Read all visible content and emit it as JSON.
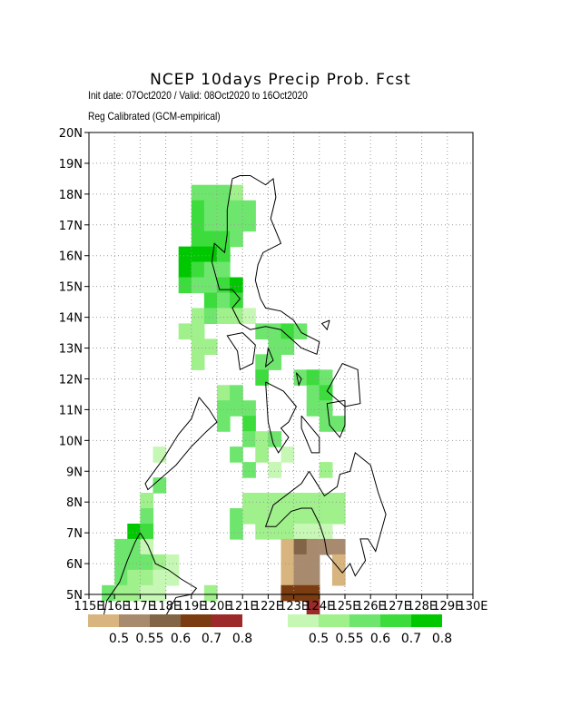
{
  "header": {
    "title": "NCEP 10days Precip Prob. Fcst",
    "init_line": "Init date: 07Oct2020 / Valid: 08Oct2020 to 16Oct2020",
    "calib_line": "Reg Calibrated (GCM-empirical)"
  },
  "axes": {
    "lat_labels": [
      "5N",
      "6N",
      "7N",
      "8N",
      "9N",
      "10N",
      "11N",
      "12N",
      "13N",
      "14N",
      "15N",
      "16N",
      "17N",
      "18N",
      "19N",
      "20N"
    ],
    "lon_labels": [
      "115E",
      "116E",
      "117E",
      "118E",
      "119E",
      "120E",
      "121E",
      "122E",
      "123E",
      "124E",
      "125E",
      "126E",
      "127E",
      "128E",
      "129E",
      "130E"
    ],
    "lat_range": [
      5,
      20
    ],
    "lon_range": [
      115,
      130
    ],
    "grid": true
  },
  "legend": {
    "dry": {
      "labels": [
        "0.5",
        "0.55",
        "0.6",
        "0.7",
        "0.8"
      ],
      "colors": [
        "#d8b57e",
        "#a88a6e",
        "#826446",
        "#7a3c10",
        "#9c2a2a"
      ]
    },
    "wet": {
      "labels": [
        "0.5",
        "0.55",
        "0.6",
        "0.7",
        "0.8"
      ],
      "colors": [
        "#c6f7b4",
        "#a0f08c",
        "#6ee66e",
        "#3cdc3c",
        "#00c800"
      ]
    }
  },
  "cell_colors": {
    "w1": "#c6f7b4",
    "w2": "#a0f08c",
    "w3": "#6ee66e",
    "w4": "#3cdc3c",
    "w5": "#00c800",
    "d1": "#d8b57e",
    "d2": "#a88a6e",
    "d3": "#826446",
    "d4": "#7a3c10",
    "d5": "#9c2a2a"
  },
  "cells": [
    {
      "lon": 119.0,
      "lat": 17.8,
      "c": "w3"
    },
    {
      "lon": 119.5,
      "lat": 17.8,
      "c": "w3"
    },
    {
      "lon": 120.0,
      "lat": 17.8,
      "c": "w3"
    },
    {
      "lon": 120.5,
      "lat": 17.8,
      "c": "w2"
    },
    {
      "lon": 119.0,
      "lat": 17.3,
      "c": "w4"
    },
    {
      "lon": 119.5,
      "lat": 17.3,
      "c": "w3"
    },
    {
      "lon": 120.0,
      "lat": 17.3,
      "c": "w3"
    },
    {
      "lon": 120.5,
      "lat": 17.3,
      "c": "w3"
    },
    {
      "lon": 121.0,
      "lat": 17.3,
      "c": "w3"
    },
    {
      "lon": 119.0,
      "lat": 16.8,
      "c": "w4"
    },
    {
      "lon": 119.5,
      "lat": 16.8,
      "c": "w3"
    },
    {
      "lon": 120.0,
      "lat": 16.8,
      "c": "w3"
    },
    {
      "lon": 120.5,
      "lat": 16.8,
      "c": "w3"
    },
    {
      "lon": 121.0,
      "lat": 16.8,
      "c": "w3"
    },
    {
      "lon": 119.0,
      "lat": 16.3,
      "c": "w4"
    },
    {
      "lon": 119.5,
      "lat": 16.3,
      "c": "w4"
    },
    {
      "lon": 120.0,
      "lat": 16.3,
      "c": "w4"
    },
    {
      "lon": 120.5,
      "lat": 16.3,
      "c": "w3"
    },
    {
      "lon": 118.5,
      "lat": 15.8,
      "c": "w5"
    },
    {
      "lon": 119.0,
      "lat": 15.8,
      "c": "w5"
    },
    {
      "lon": 119.5,
      "lat": 15.8,
      "c": "w5"
    },
    {
      "lon": 120.0,
      "lat": 15.8,
      "c": "w4"
    },
    {
      "lon": 118.5,
      "lat": 15.3,
      "c": "w5"
    },
    {
      "lon": 119.0,
      "lat": 15.3,
      "c": "w4"
    },
    {
      "lon": 119.5,
      "lat": 15.3,
      "c": "w3"
    },
    {
      "lon": 120.0,
      "lat": 15.3,
      "c": "w3"
    },
    {
      "lon": 118.5,
      "lat": 14.8,
      "c": "w4"
    },
    {
      "lon": 119.0,
      "lat": 14.8,
      "c": "w3"
    },
    {
      "lon": 119.5,
      "lat": 14.8,
      "c": "w3"
    },
    {
      "lon": 120.0,
      "lat": 14.8,
      "c": "w4"
    },
    {
      "lon": 120.5,
      "lat": 14.8,
      "c": "w5"
    },
    {
      "lon": 119.5,
      "lat": 14.3,
      "c": "w4"
    },
    {
      "lon": 120.0,
      "lat": 14.3,
      "c": "w3"
    },
    {
      "lon": 120.5,
      "lat": 14.3,
      "c": "w4"
    },
    {
      "lon": 119.0,
      "lat": 13.8,
      "c": "w2"
    },
    {
      "lon": 119.5,
      "lat": 13.8,
      "c": "w3"
    },
    {
      "lon": 120.0,
      "lat": 13.8,
      "c": "w2"
    },
    {
      "lon": 120.5,
      "lat": 13.8,
      "c": "w2"
    },
    {
      "lon": 121.0,
      "lat": 13.8,
      "c": "w1"
    },
    {
      "lon": 118.5,
      "lat": 13.3,
      "c": "w2"
    },
    {
      "lon": 119.0,
      "lat": 13.3,
      "c": "w2"
    },
    {
      "lon": 121.5,
      "lat": 13.3,
      "c": "w3"
    },
    {
      "lon": 122.0,
      "lat": 13.3,
      "c": "w3"
    },
    {
      "lon": 122.5,
      "lat": 13.3,
      "c": "w4"
    },
    {
      "lon": 123.0,
      "lat": 13.3,
      "c": "w3"
    },
    {
      "lon": 119.0,
      "lat": 12.8,
      "c": "w2"
    },
    {
      "lon": 119.5,
      "lat": 12.8,
      "c": "w2"
    },
    {
      "lon": 122.0,
      "lat": 12.8,
      "c": "w3"
    },
    {
      "lon": 122.5,
      "lat": 12.8,
      "c": "w3"
    },
    {
      "lon": 119.0,
      "lat": 12.3,
      "c": "w2"
    },
    {
      "lon": 121.5,
      "lat": 12.3,
      "c": "w3"
    },
    {
      "lon": 122.0,
      "lat": 12.3,
      "c": "w3"
    },
    {
      "lon": 121.5,
      "lat": 11.8,
      "c": "w4"
    },
    {
      "lon": 123.0,
      "lat": 11.8,
      "c": "w3"
    },
    {
      "lon": 123.5,
      "lat": 11.8,
      "c": "w4"
    },
    {
      "lon": 124.0,
      "lat": 11.8,
      "c": "w3"
    },
    {
      "lon": 120.0,
      "lat": 11.3,
      "c": "w2"
    },
    {
      "lon": 120.5,
      "lat": 11.3,
      "c": "w3"
    },
    {
      "lon": 123.5,
      "lat": 11.3,
      "c": "w3"
    },
    {
      "lon": 124.0,
      "lat": 11.3,
      "c": "w4"
    },
    {
      "lon": 120.0,
      "lat": 10.8,
      "c": "w3"
    },
    {
      "lon": 120.5,
      "lat": 10.8,
      "c": "w3"
    },
    {
      "lon": 121.0,
      "lat": 10.8,
      "c": "w3"
    },
    {
      "lon": 123.5,
      "lat": 10.8,
      "c": "w3"
    },
    {
      "lon": 124.0,
      "lat": 10.8,
      "c": "w3"
    },
    {
      "lon": 120.0,
      "lat": 10.3,
      "c": "w3"
    },
    {
      "lon": 121.0,
      "lat": 10.3,
      "c": "w4"
    },
    {
      "lon": 124.0,
      "lat": 10.3,
      "c": "w3"
    },
    {
      "lon": 124.5,
      "lat": 10.3,
      "c": "w3"
    },
    {
      "lon": 121.0,
      "lat": 9.8,
      "c": "w3"
    },
    {
      "lon": 121.5,
      "lat": 9.8,
      "c": "w2"
    },
    {
      "lon": 122.0,
      "lat": 9.8,
      "c": "w3"
    },
    {
      "lon": 120.5,
      "lat": 9.3,
      "c": "w3"
    },
    {
      "lon": 121.5,
      "lat": 9.3,
      "c": "w2"
    },
    {
      "lon": 122.5,
      "lat": 9.3,
      "c": "w1"
    },
    {
      "lon": 117.5,
      "lat": 9.3,
      "c": "w1"
    },
    {
      "lon": 121.0,
      "lat": 8.8,
      "c": "w3"
    },
    {
      "lon": 122.0,
      "lat": 8.8,
      "c": "w1"
    },
    {
      "lon": 124.0,
      "lat": 8.8,
      "c": "w2"
    },
    {
      "lon": 117.5,
      "lat": 8.3,
      "c": "w3"
    },
    {
      "lon": 117.0,
      "lat": 7.8,
      "c": "w2"
    },
    {
      "lon": 121.0,
      "lat": 7.8,
      "c": "w2"
    },
    {
      "lon": 121.5,
      "lat": 7.8,
      "c": "w2"
    },
    {
      "lon": 122.0,
      "lat": 7.8,
      "c": "w2"
    },
    {
      "lon": 122.5,
      "lat": 7.8,
      "c": "w2"
    },
    {
      "lon": 123.0,
      "lat": 7.8,
      "c": "w2"
    },
    {
      "lon": 123.5,
      "lat": 7.8,
      "c": "w2"
    },
    {
      "lon": 124.0,
      "lat": 7.8,
      "c": "w2"
    },
    {
      "lon": 124.5,
      "lat": 7.8,
      "c": "w2"
    },
    {
      "lon": 120.5,
      "lat": 7.3,
      "c": "w3"
    },
    {
      "lon": 121.0,
      "lat": 7.3,
      "c": "w2"
    },
    {
      "lon": 121.5,
      "lat": 7.3,
      "c": "w2"
    },
    {
      "lon": 122.0,
      "lat": 7.3,
      "c": "w2"
    },
    {
      "lon": 122.5,
      "lat": 7.3,
      "c": "w2"
    },
    {
      "lon": 123.0,
      "lat": 7.3,
      "c": "w2"
    },
    {
      "lon": 123.5,
      "lat": 7.3,
      "c": "w2"
    },
    {
      "lon": 124.0,
      "lat": 7.3,
      "c": "w2"
    },
    {
      "lon": 124.5,
      "lat": 7.3,
      "c": "w2"
    },
    {
      "lon": 120.5,
      "lat": 6.8,
      "c": "w3"
    },
    {
      "lon": 121.5,
      "lat": 6.8,
      "c": "w2"
    },
    {
      "lon": 122.0,
      "lat": 6.8,
      "c": "w2"
    },
    {
      "lon": 122.5,
      "lat": 6.8,
      "c": "w2"
    },
    {
      "lon": 123.0,
      "lat": 6.8,
      "c": "w1"
    },
    {
      "lon": 123.5,
      "lat": 6.8,
      "c": "w1"
    },
    {
      "lon": 124.0,
      "lat": 6.8,
      "c": "w1"
    },
    {
      "lon": 122.5,
      "lat": 6.3,
      "c": "d1"
    },
    {
      "lon": 123.0,
      "lat": 6.3,
      "c": "d3"
    },
    {
      "lon": 123.5,
      "lat": 6.3,
      "c": "d2"
    },
    {
      "lon": 124.0,
      "lat": 6.3,
      "c": "d2"
    },
    {
      "lon": 124.5,
      "lat": 6.3,
      "c": "d2"
    },
    {
      "lon": 122.5,
      "lat": 5.8,
      "c": "d1"
    },
    {
      "lon": 123.0,
      "lat": 5.8,
      "c": "d2"
    },
    {
      "lon": 123.5,
      "lat": 5.8,
      "c": "d2"
    },
    {
      "lon": 124.5,
      "lat": 5.8,
      "c": "d1"
    },
    {
      "lon": 122.5,
      "lat": 5.3,
      "c": "d1"
    },
    {
      "lon": 123.0,
      "lat": 5.3,
      "c": "d2"
    },
    {
      "lon": 123.5,
      "lat": 5.3,
      "c": "d2"
    },
    {
      "lon": 124.5,
      "lat": 5.3,
      "c": "d1"
    },
    {
      "lon": 122.5,
      "lat": 4.8,
      "c": "d4"
    },
    {
      "lon": 123.0,
      "lat": 4.8,
      "c": "d4"
    },
    {
      "lon": 123.5,
      "lat": 4.8,
      "c": "d4"
    },
    {
      "lon": 123.5,
      "lat": 4.3,
      "c": "d5"
    },
    {
      "lon": 117.0,
      "lat": 7.3,
      "c": "w3"
    },
    {
      "lon": 116.5,
      "lat": 6.8,
      "c": "w5"
    },
    {
      "lon": 117.0,
      "lat": 6.8,
      "c": "w4"
    },
    {
      "lon": 116.0,
      "lat": 6.3,
      "c": "w3"
    },
    {
      "lon": 116.5,
      "lat": 6.3,
      "c": "w3"
    },
    {
      "lon": 117.0,
      "lat": 6.3,
      "c": "w1"
    },
    {
      "lon": 116.0,
      "lat": 5.8,
      "c": "w3"
    },
    {
      "lon": 116.5,
      "lat": 5.8,
      "c": "w3"
    },
    {
      "lon": 117.0,
      "lat": 5.8,
      "c": "w3"
    },
    {
      "lon": 117.5,
      "lat": 5.8,
      "c": "w2"
    },
    {
      "lon": 118.0,
      "lat": 5.8,
      "c": "w1"
    },
    {
      "lon": 116.0,
      "lat": 5.3,
      "c": "w3"
    },
    {
      "lon": 116.5,
      "lat": 5.3,
      "c": "w2"
    },
    {
      "lon": 117.0,
      "lat": 5.3,
      "c": "w2"
    },
    {
      "lon": 117.5,
      "lat": 5.3,
      "c": "w1"
    },
    {
      "lon": 118.0,
      "lat": 5.3,
      "c": "w1"
    },
    {
      "lon": 115.5,
      "lat": 4.8,
      "c": "w3"
    },
    {
      "lon": 116.0,
      "lat": 4.8,
      "c": "w2"
    },
    {
      "lon": 116.5,
      "lat": 4.8,
      "c": "w2"
    },
    {
      "lon": 117.0,
      "lat": 4.8,
      "c": "w1"
    },
    {
      "lon": 117.5,
      "lat": 4.8,
      "c": "w1"
    },
    {
      "lon": 119.5,
      "lat": 4.8,
      "c": "w2"
    }
  ],
  "coastlines": [
    [
      [
        120.6,
        18.5
      ],
      [
        120.9,
        18.6
      ],
      [
        121.3,
        18.6
      ],
      [
        121.9,
        18.3
      ],
      [
        122.2,
        18.5
      ],
      [
        122.3,
        17.9
      ],
      [
        122.1,
        17.2
      ],
      [
        122.5,
        16.4
      ],
      [
        121.8,
        16.1
      ],
      [
        121.6,
        15.7
      ],
      [
        121.5,
        15.2
      ],
      [
        121.7,
        14.6
      ],
      [
        121.9,
        14.3
      ],
      [
        122.5,
        14.2
      ],
      [
        123.0,
        13.9
      ],
      [
        123.3,
        13.5
      ],
      [
        124.0,
        13.2
      ],
      [
        123.9,
        12.8
      ],
      [
        123.3,
        13.0
      ],
      [
        122.9,
        13.3
      ],
      [
        122.5,
        13.6
      ],
      [
        121.9,
        13.7
      ],
      [
        121.3,
        13.6
      ],
      [
        120.9,
        13.8
      ],
      [
        120.6,
        14.3
      ],
      [
        120.9,
        14.6
      ],
      [
        120.6,
        14.9
      ],
      [
        120.1,
        14.9
      ],
      [
        119.8,
        15.8
      ],
      [
        119.9,
        16.4
      ],
      [
        120.3,
        16.1
      ],
      [
        120.4,
        16.7
      ],
      [
        120.4,
        17.5
      ],
      [
        120.6,
        18.5
      ]
    ],
    [
      [
        121.0,
        13.5
      ],
      [
        121.5,
        13.1
      ],
      [
        121.4,
        12.5
      ],
      [
        120.9,
        12.3
      ],
      [
        120.8,
        12.9
      ],
      [
        120.4,
        13.4
      ],
      [
        121.0,
        13.5
      ]
    ],
    [
      [
        119.3,
        11.4
      ],
      [
        119.7,
        11.0
      ],
      [
        120.0,
        10.6
      ],
      [
        119.6,
        10.3
      ],
      [
        119.0,
        9.8
      ],
      [
        118.4,
        9.2
      ],
      [
        117.3,
        8.4
      ],
      [
        117.2,
        8.6
      ],
      [
        117.9,
        9.4
      ],
      [
        118.5,
        10.2
      ],
      [
        119.0,
        10.7
      ],
      [
        119.3,
        11.4
      ]
    ],
    [
      [
        121.9,
        11.9
      ],
      [
        122.6,
        11.6
      ],
      [
        123.1,
        11.1
      ],
      [
        122.8,
        10.6
      ],
      [
        122.5,
        10.4
      ],
      [
        122.8,
        10.1
      ],
      [
        122.4,
        9.6
      ],
      [
        122.2,
        9.9
      ],
      [
        122.0,
        10.6
      ],
      [
        121.9,
        11.9
      ]
    ],
    [
      [
        123.3,
        10.8
      ],
      [
        124.0,
        10.1
      ],
      [
        124.0,
        9.6
      ],
      [
        123.7,
        9.6
      ],
      [
        123.3,
        10.4
      ],
      [
        123.3,
        10.8
      ]
    ],
    [
      [
        124.9,
        12.5
      ],
      [
        125.5,
        12.3
      ],
      [
        125.6,
        11.2
      ],
      [
        125.0,
        11.1
      ],
      [
        124.3,
        11.6
      ],
      [
        124.9,
        12.5
      ]
    ],
    [
      [
        125.0,
        11.3
      ],
      [
        125.0,
        10.5
      ],
      [
        124.8,
        10.1
      ],
      [
        124.4,
        10.5
      ],
      [
        124.3,
        11.2
      ],
      [
        125.0,
        11.3
      ]
    ],
    [
      [
        123.6,
        9.0
      ],
      [
        123.3,
        8.6
      ],
      [
        122.2,
        7.9
      ],
      [
        121.9,
        7.2
      ],
      [
        122.3,
        7.2
      ],
      [
        122.9,
        7.7
      ],
      [
        123.3,
        7.8
      ],
      [
        123.7,
        7.8
      ],
      [
        124.0,
        7.3
      ],
      [
        124.2,
        6.8
      ],
      [
        124.3,
        6.3
      ],
      [
        124.9,
        5.7
      ],
      [
        125.2,
        6.0
      ],
      [
        125.4,
        5.6
      ],
      [
        125.8,
        6.1
      ],
      [
        125.6,
        6.8
      ],
      [
        125.9,
        6.8
      ],
      [
        126.2,
        6.4
      ],
      [
        126.4,
        7.0
      ],
      [
        126.6,
        7.6
      ],
      [
        126.3,
        8.3
      ],
      [
        126.0,
        9.2
      ],
      [
        125.4,
        9.6
      ],
      [
        125.2,
        9.0
      ],
      [
        124.8,
        8.9
      ],
      [
        124.7,
        8.5
      ],
      [
        124.2,
        8.2
      ],
      [
        123.9,
        8.6
      ],
      [
        123.6,
        9.0
      ]
    ],
    [
      [
        117.0,
        7.0
      ],
      [
        117.3,
        6.6
      ],
      [
        117.6,
        6.0
      ],
      [
        118.1,
        5.8
      ],
      [
        118.6,
        5.5
      ],
      [
        119.2,
        5.2
      ],
      [
        119.0,
        5.0
      ],
      [
        118.4,
        4.9
      ],
      [
        118.0,
        4.3
      ],
      [
        117.2,
        4.0
      ],
      [
        115.5,
        4.0
      ],
      [
        115.7,
        4.8
      ],
      [
        116.2,
        5.4
      ],
      [
        116.5,
        6.1
      ],
      [
        116.8,
        6.7
      ],
      [
        117.0,
        7.0
      ]
    ],
    [
      [
        124.4,
        13.9
      ],
      [
        124.3,
        13.6
      ],
      [
        124.1,
        13.8
      ],
      [
        124.4,
        13.9
      ]
    ],
    [
      [
        122.0,
        13.0
      ],
      [
        122.2,
        12.6
      ],
      [
        121.9,
        12.4
      ],
      [
        122.0,
        13.0
      ]
    ],
    [
      [
        123.1,
        12.2
      ],
      [
        123.3,
        12.0
      ],
      [
        123.2,
        11.8
      ],
      [
        123.1,
        12.2
      ]
    ]
  ]
}
